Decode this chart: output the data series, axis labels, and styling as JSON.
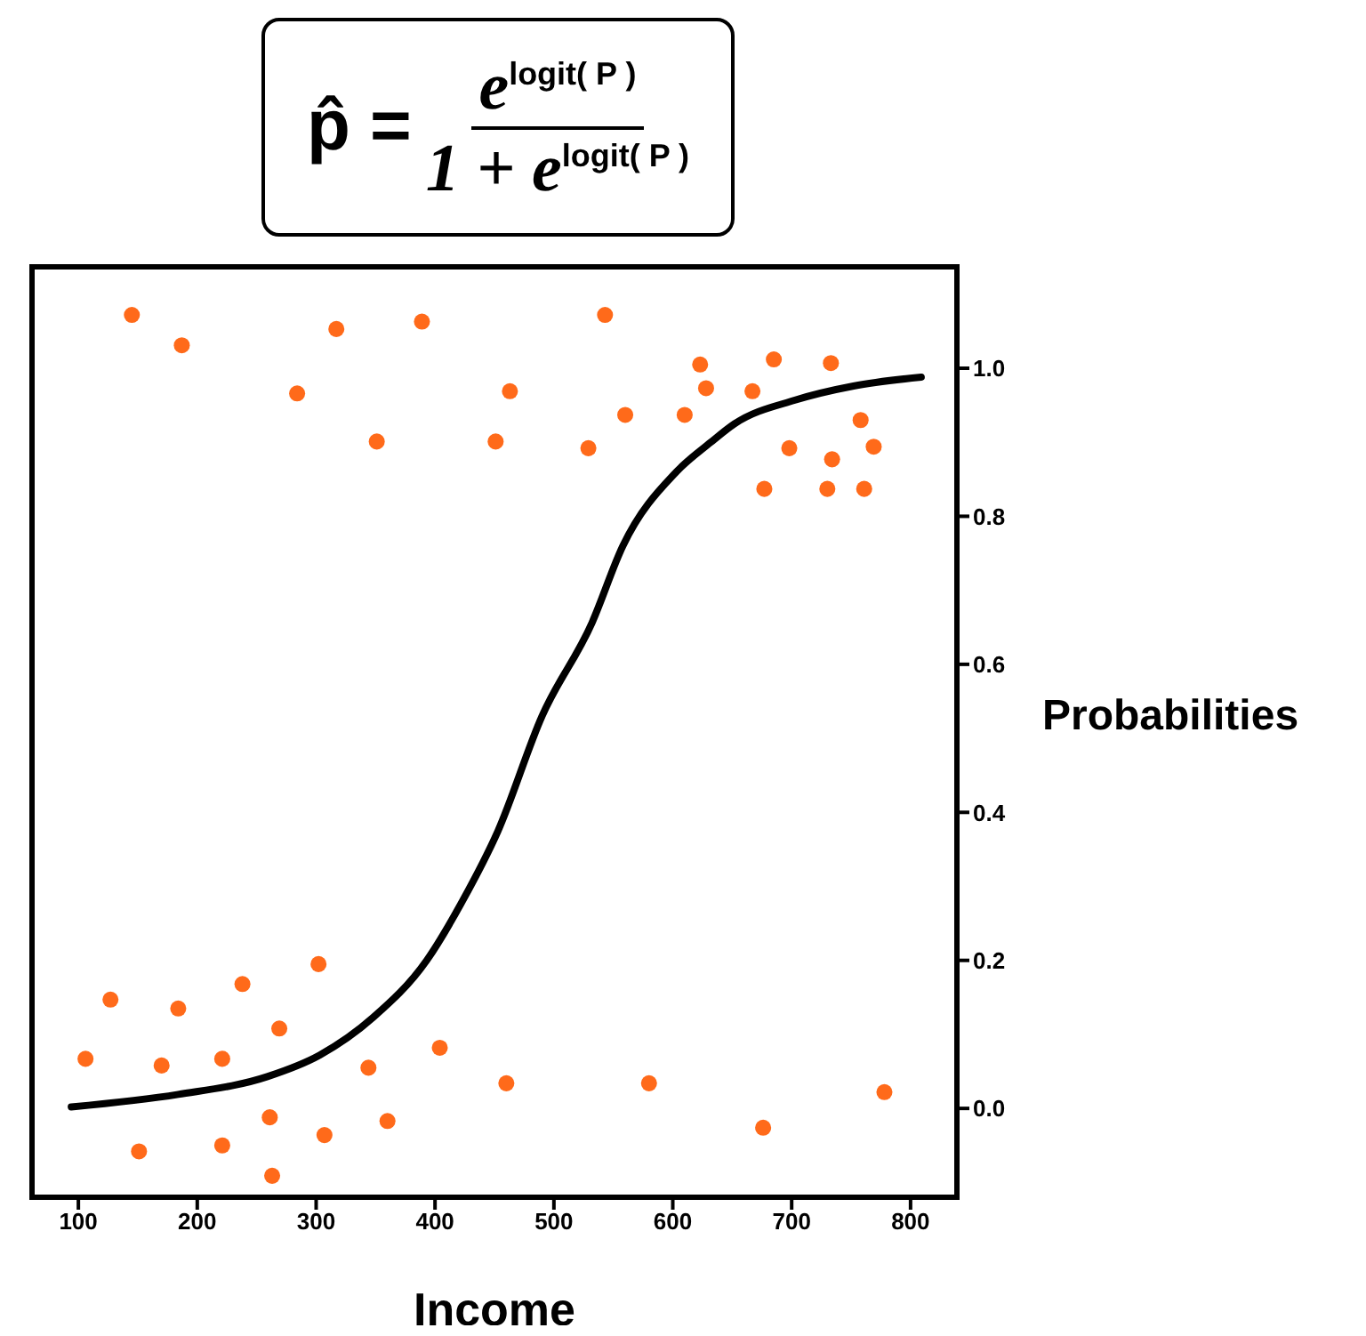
{
  "chart_data": {
    "type": "scatter",
    "title": "p̂ = e$^{logit( P )}$ 1 + e$^{logit( P )}$",
    "xlabel": "Income",
    "ylabel": "Probabilities",
    "xlim": [
      61,
      839
    ],
    "xticks": [
      100,
      200,
      300,
      400,
      500,
      600,
      700,
      800
    ],
    "ylim": [
      -0.12,
      1.137
    ],
    "yticks": [
      {
        "value": 0,
        "label": "0.0"
      },
      {
        "value": 0.2,
        "label": "0.2"
      },
      {
        "value": 0.4,
        "label": "0.4"
      },
      {
        "value": 0.6,
        "label": "0.6"
      },
      {
        "value": 0.8,
        "label": "0.8"
      },
      {
        "value": 1,
        "label": "1.0"
      }
    ],
    "grid": false,
    "legend": false,
    "marker": "circle",
    "series": [
      {
        "color": "#ff6a1a",
        "x": [
          145,
          187,
          317,
          389,
          543,
          284,
          463,
          623,
          628,
          351,
          451,
          529,
          560,
          610,
          667,
          685,
          733,
          698,
          677,
          730,
          734,
          758,
          769,
          761,
          106,
          127,
          184,
          170,
          221,
          238,
          269,
          302,
          151,
          221,
          261,
          263,
          307,
          344,
          360,
          404,
          460,
          580,
          676,
          778
        ],
        "values": [
          1.072,
          1.031,
          1.053,
          1.063,
          1.072,
          0.966,
          0.969,
          1.005,
          0.973,
          0.901,
          0.901,
          0.892,
          0.937,
          0.937,
          0.969,
          1.012,
          1.007,
          0.892,
          0.837,
          0.837,
          0.877,
          0.93,
          0.894,
          0.837,
          0.067,
          0.147,
          0.135,
          0.058,
          0.067,
          0.168,
          0.108,
          0.195,
          -0.058,
          -0.05,
          -0.012,
          -0.091,
          -0.036,
          0.055,
          -0.017,
          0.082,
          0.034,
          0.034,
          -0.026,
          0.022
        ]
      },
      {
        "type": "line",
        "color": "#000000",
        "line_style": "solid",
        "marker": "none",
        "x": [
          94,
          184,
          259,
          303,
          348,
          393,
          423,
          453,
          490,
          532,
          558,
          603,
          632,
          652,
          703,
          752,
          809
        ],
        "values": [
          0.002,
          0.019,
          0.043,
          0.072,
          0.123,
          0.2,
          0.28,
          0.375,
          0.53,
          0.656,
          0.76,
          0.86,
          0.9,
          0.925,
          0.957,
          0.976,
          0.988
        ]
      }
    ]
  }
}
